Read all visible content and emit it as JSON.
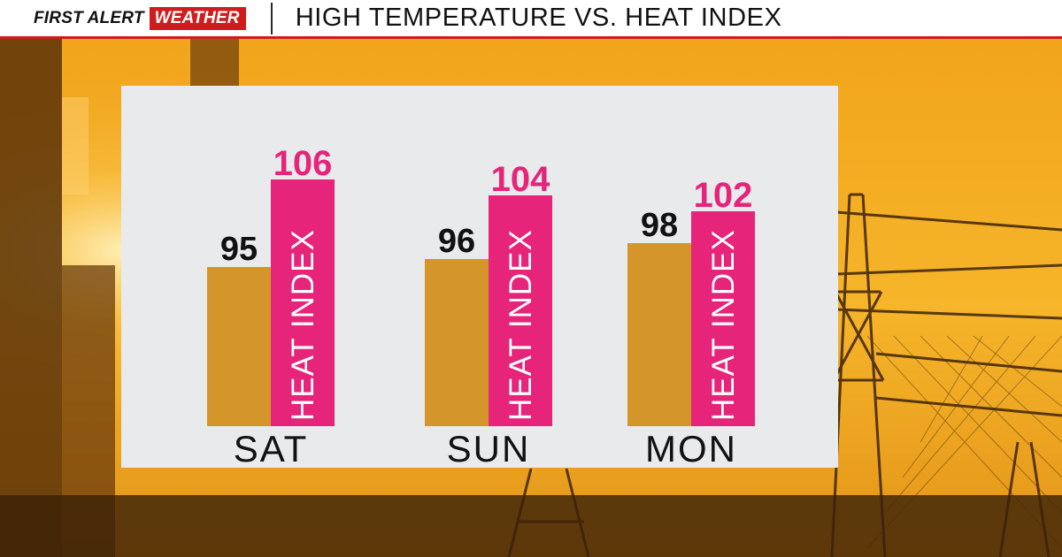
{
  "header": {
    "brand_first": "FIRST ALERT",
    "brand_weather": "WEATHER",
    "title": "HIGH TEMPERATURE VS. HEAT INDEX"
  },
  "colors": {
    "header_accent": "#d01c1c",
    "high_bar": "#d4962a",
    "heat_index_bar": "#e5247a",
    "panel_bg": "#e9eaec"
  },
  "chart_data": {
    "type": "bar",
    "categories": [
      "SAT",
      "SUN",
      "MON"
    ],
    "series": [
      {
        "values": [
          95,
          96,
          98
        ]
      },
      {
        "name": "HEAT INDEX",
        "values": [
          106,
          104,
          102
        ]
      }
    ],
    "ylim": [
      75,
      110
    ]
  }
}
